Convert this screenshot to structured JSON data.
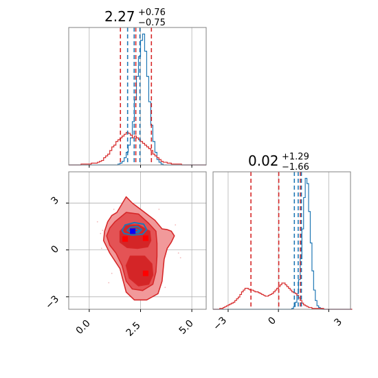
{
  "chart_data": [
    {
      "type": "histogram",
      "panel": "marginal-x",
      "title": {
        "value": "2.27",
        "upper": "+0.76",
        "lower": "−0.75"
      },
      "xlim": [
        -1.0,
        5.7
      ],
      "grid": true,
      "series": [
        {
          "color": "#1f77b4",
          "bin_start": -1.0,
          "bin_width": 0.1,
          "counts": [
            0,
            0,
            0,
            0,
            0,
            0,
            0,
            0,
            0,
            0,
            0,
            0,
            0,
            0,
            0,
            0,
            0,
            0,
            0,
            0,
            0,
            0,
            0,
            0,
            1,
            2,
            4,
            8,
            14,
            22,
            30,
            48,
            72,
            98,
            120,
            138,
            145,
            126,
            98,
            70,
            44,
            26,
            14,
            6,
            3,
            1,
            0,
            0,
            0,
            0,
            0,
            0,
            0,
            0,
            0,
            0,
            0,
            0,
            0,
            0,
            0,
            0,
            0,
            0,
            0,
            0,
            0
          ]
        },
        {
          "color": "#d62728",
          "bin_start": -1.0,
          "bin_width": 0.1,
          "counts": [
            0,
            0,
            0,
            0,
            0,
            0,
            1,
            1,
            1,
            1,
            1,
            2,
            2,
            2,
            3,
            4,
            5,
            8,
            10,
            12,
            16,
            20,
            22,
            26,
            28,
            30,
            32,
            34,
            36,
            35,
            33,
            30,
            32,
            30,
            28,
            26,
            24,
            22,
            20,
            18,
            16,
            12,
            10,
            8,
            6,
            4,
            3,
            3,
            2,
            2,
            1,
            1,
            1,
            1,
            1,
            0,
            0,
            0,
            0,
            0,
            0,
            0,
            0,
            0,
            0,
            0,
            0
          ]
        }
      ],
      "quantiles": [
        {
          "color": "#d62728",
          "values": [
            1.52,
            2.27,
            3.03
          ]
        },
        {
          "color": "#1f77b4",
          "values": [
            1.87,
            2.19,
            2.47
          ]
        }
      ]
    },
    {
      "type": "histogram",
      "panel": "marginal-y",
      "title": {
        "value": "0.02",
        "upper": "+1.29",
        "lower": "−1.66"
      },
      "xlim": [
        -3.9,
        4.3
      ],
      "grid": true,
      "series": [
        {
          "color": "#1f77b4",
          "bin_start": -3.9,
          "bin_width": 0.1,
          "counts": [
            0,
            0,
            0,
            0,
            0,
            0,
            0,
            0,
            0,
            0,
            0,
            0,
            0,
            0,
            0,
            0,
            0,
            0,
            0,
            0,
            0,
            0,
            0,
            0,
            0,
            0,
            0,
            0,
            0,
            0,
            0,
            0,
            0,
            0,
            0,
            0,
            0,
            0,
            0,
            0,
            0,
            0,
            0,
            0,
            0,
            0,
            0,
            1,
            3,
            8,
            18,
            34,
            58,
            92,
            128,
            150,
            144,
            112,
            76,
            44,
            22,
            10,
            4,
            2,
            1,
            0,
            0,
            0,
            0,
            0,
            0,
            0,
            0,
            0,
            0,
            0,
            0,
            0,
            0,
            0,
            0,
            0,
            0
          ]
        },
        {
          "color": "#d62728",
          "bin_start": -3.9,
          "bin_width": 0.1,
          "counts": [
            0,
            0,
            0,
            0,
            1,
            1,
            2,
            3,
            4,
            5,
            6,
            7,
            8,
            10,
            12,
            14,
            17,
            20,
            22,
            24,
            24,
            23,
            22,
            22,
            21,
            20,
            20,
            19,
            18,
            17,
            16,
            15,
            15,
            16,
            17,
            18,
            20,
            22,
            24,
            26,
            28,
            30,
            30,
            28,
            26,
            24,
            22,
            20,
            19,
            18,
            16,
            13,
            10,
            7,
            5,
            4,
            3,
            2,
            2,
            1,
            1,
            1,
            1,
            1,
            1,
            1,
            0,
            0,
            0,
            0,
            0,
            0,
            0,
            0,
            0,
            0,
            0,
            0,
            0,
            0,
            0,
            0,
            0
          ]
        }
      ],
      "quantiles": [
        {
          "color": "#d62728",
          "values": [
            -1.64,
            0.02,
            1.31
          ]
        },
        {
          "color": "#1f77b4",
          "values": [
            0.95,
            1.18,
            1.37
          ]
        }
      ]
    },
    {
      "type": "contour",
      "panel": "joint",
      "xlim": [
        -1.0,
        5.7
      ],
      "ylim": [
        -3.8,
        5.0
      ],
      "grid": true,
      "points": [
        {
          "color": "#0000ff",
          "x": 2.12,
          "y": 1.2
        },
        {
          "color": "#ff0000",
          "x": 1.75,
          "y": 0.7
        },
        {
          "color": "#ff0000",
          "x": 2.75,
          "y": 0.75
        },
        {
          "color": "#ff0000",
          "x": 2.75,
          "y": -1.5
        }
      ],
      "red_levels": [
        {
          "fill": "#f1999a",
          "polygon": [
            [
              1.35,
              2.4
            ],
            [
              1.8,
              3.4
            ],
            [
              2.1,
              3.0
            ],
            [
              2.6,
              2.5
            ],
            [
              3.2,
              1.9
            ],
            [
              3.55,
              1.35
            ],
            [
              3.8,
              1.3
            ],
            [
              4.0,
              1.2
            ],
            [
              4.15,
              0.9
            ],
            [
              4.0,
              0.5
            ],
            [
              3.8,
              0.1
            ],
            [
              3.65,
              -0.6
            ],
            [
              3.55,
              -2.0
            ],
            [
              3.35,
              -2.8
            ],
            [
              2.8,
              -3.2
            ],
            [
              2.2,
              -3.2
            ],
            [
              1.8,
              -2.7
            ],
            [
              1.5,
              -1.2
            ],
            [
              1.0,
              -0.2
            ],
            [
              0.7,
              0.6
            ],
            [
              0.75,
              1.2
            ],
            [
              0.9,
              1.8
            ],
            [
              1.1,
              2.2
            ]
          ]
        },
        {
          "fill": "#e45355",
          "polygon": [
            [
              1.25,
              1.8
            ],
            [
              1.8,
              2.4
            ],
            [
              2.4,
              2.3
            ],
            [
              2.9,
              1.7
            ],
            [
              3.25,
              1.2
            ],
            [
              3.3,
              0.4
            ],
            [
              3.3,
              -0.4
            ],
            [
              3.25,
              -1.4
            ],
            [
              3.1,
              -2.2
            ],
            [
              2.6,
              -2.6
            ],
            [
              2.1,
              -2.5
            ],
            [
              1.8,
              -2.0
            ],
            [
              1.6,
              -1.0
            ],
            [
              1.3,
              -0.2
            ],
            [
              1.0,
              0.3
            ],
            [
              0.85,
              0.9
            ],
            [
              1.0,
              1.4
            ]
          ]
        },
        {
          "fill": "#d42527",
          "polygon": [
            [
              1.5,
              1.2
            ],
            [
              1.8,
              1.6
            ],
            [
              2.4,
              1.6
            ],
            [
              2.95,
              1.2
            ],
            [
              3.0,
              0.6
            ],
            [
              2.85,
              0.2
            ],
            [
              2.35,
              0.1
            ],
            [
              1.85,
              0.15
            ],
            [
              1.5,
              0.5
            ]
          ]
        },
        {
          "fill": "#d42527",
          "polygon": [
            [
              2.0,
              -0.4
            ],
            [
              2.7,
              -0.4
            ],
            [
              3.05,
              -0.9
            ],
            [
              3.1,
              -1.6
            ],
            [
              2.9,
              -2.2
            ],
            [
              2.4,
              -2.3
            ],
            [
              1.95,
              -1.8
            ],
            [
              1.8,
              -1.0
            ]
          ]
        }
      ],
      "blue_levels": [
        {
          "color": "#1f77b4",
          "polygon": [
            [
              1.6,
              1.25
            ],
            [
              1.75,
              1.6
            ],
            [
              2.2,
              1.75
            ],
            [
              2.65,
              1.65
            ],
            [
              2.8,
              1.3
            ],
            [
              2.6,
              1.0
            ],
            [
              2.1,
              0.95
            ],
            [
              1.7,
              1.05
            ]
          ]
        },
        {
          "color": "#1f77b4",
          "polygon": [
            [
              1.85,
              1.25
            ],
            [
              2.0,
              1.45
            ],
            [
              2.35,
              1.5
            ],
            [
              2.55,
              1.3
            ],
            [
              2.4,
              1.1
            ],
            [
              2.05,
              1.1
            ]
          ]
        },
        {
          "color": "#1f77b4",
          "polygon": [
            [
              2.0,
              1.2
            ],
            [
              2.25,
              1.35
            ],
            [
              2.45,
              1.25
            ],
            [
              2.3,
              1.15
            ]
          ]
        }
      ],
      "outer_speckle": [
        [
          0.55,
          1.05
        ],
        [
          0.65,
          1.25
        ],
        [
          4.35,
          -0.2
        ],
        [
          4.45,
          -0.5
        ],
        [
          0.6,
          0.1
        ],
        [
          1.1,
          -1.5
        ],
        [
          3.7,
          -2.4
        ],
        [
          1.2,
          2.6
        ],
        [
          0.4,
          1.8
        ],
        [
          4.2,
          1.6
        ],
        [
          0.95,
          -2.1
        ],
        [
          3.4,
          2.6
        ]
      ]
    }
  ],
  "tick_labels": {
    "joint_x": [
      "0.0",
      "2.5",
      "5.0"
    ],
    "joint_y": [
      "3",
      "0",
      "−3"
    ],
    "marginal_y_x": [
      "−3",
      "0",
      "3"
    ]
  },
  "colors": {
    "red": "#d62728",
    "blue": "#1f77b4",
    "grid": "#b0b0b0",
    "frame": "#808080"
  }
}
